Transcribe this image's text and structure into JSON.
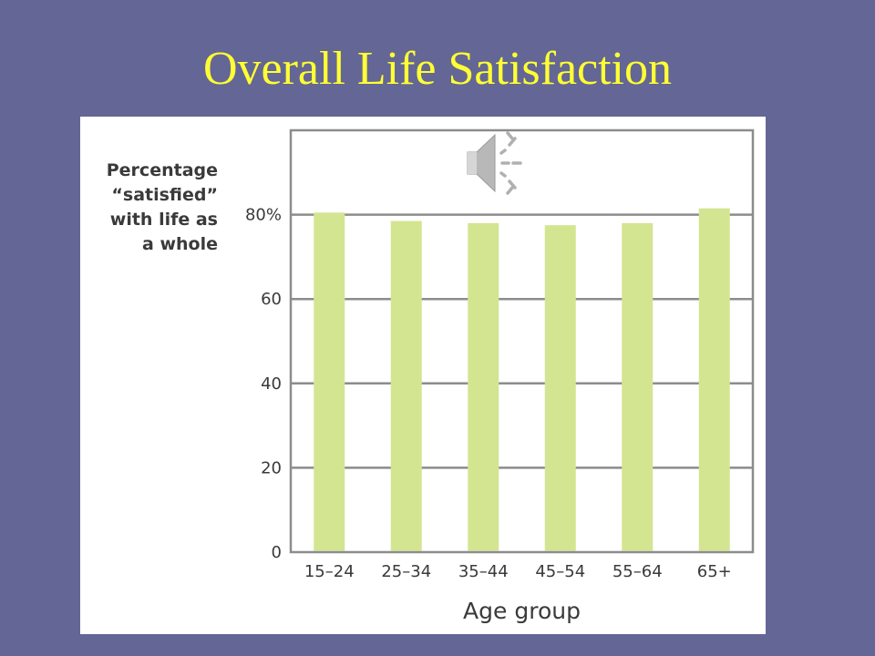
{
  "slide": {
    "title": "Overall Life Satisfaction"
  },
  "icons": {
    "audio": "speaker-audio-icon"
  },
  "colors": {
    "background": "#646695",
    "title": "#ffff33",
    "bar": "#d3e591",
    "grid": "#8c8c8c"
  },
  "chart_data": {
    "type": "bar",
    "categories": [
      "15–24",
      "25–34",
      "35–44",
      "45–54",
      "55–64",
      "65+"
    ],
    "values": [
      80.5,
      78.5,
      78,
      77.5,
      78,
      81.5
    ],
    "ylabel": "Percentage\n“satisfied”\nwith life as\na whole",
    "xlabel": "Age group",
    "ylim": [
      0,
      100
    ],
    "yticks": [
      {
        "value": 0,
        "label": "0"
      },
      {
        "value": 20,
        "label": "20"
      },
      {
        "value": 40,
        "label": "40"
      },
      {
        "value": 60,
        "label": "60"
      },
      {
        "value": 80,
        "label": "80%"
      }
    ],
    "grid": true
  }
}
